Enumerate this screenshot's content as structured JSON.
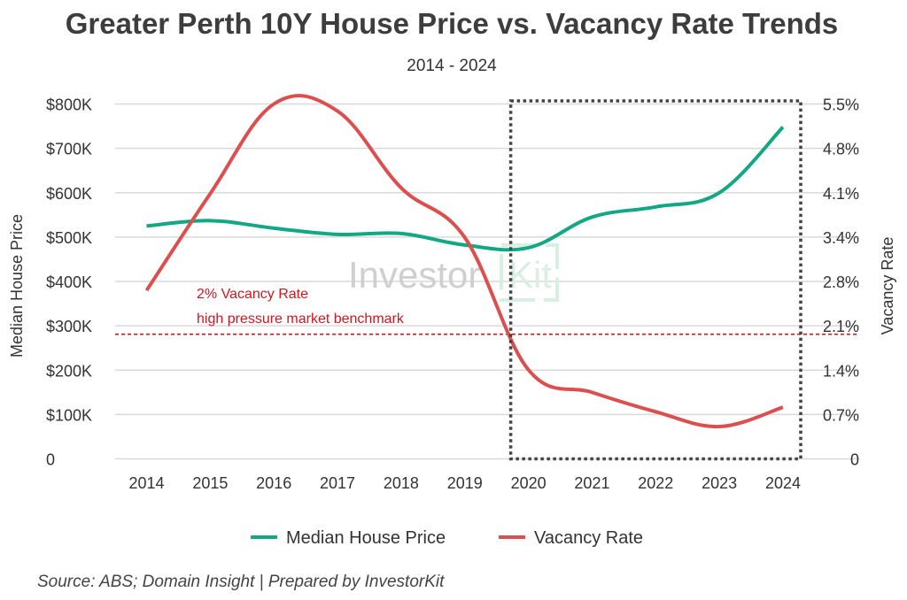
{
  "chart_data": {
    "type": "line",
    "title": "Greater Perth 10Y House Price vs. Vacancy Rate Trends",
    "subtitle": "2014 - 2024",
    "x": [
      "2014",
      "2015",
      "2016",
      "2017",
      "2018",
      "2019",
      "2020",
      "2021",
      "2022",
      "2023",
      "2024"
    ],
    "ylabel_left": "Median House Price",
    "ylabel_right": "Vacancy Rate",
    "y_left": {
      "range": [
        0,
        800000
      ],
      "ticks": [
        "0",
        "$100K",
        "$200K",
        "$300K",
        "$400K",
        "$500K",
        "$600K",
        "$700K",
        "$800K"
      ]
    },
    "y_right": {
      "range": [
        0,
        5.5
      ],
      "ticks": [
        "0",
        "0.7%",
        "1.4%",
        "2.1%",
        "2.8%",
        "3.4%",
        "4.1%",
        "4.8%",
        "5.5%"
      ]
    },
    "series": [
      {
        "name": "Median House Price",
        "axis": "left",
        "color": "#13a884",
        "values": [
          525000,
          537000,
          520000,
          506000,
          508000,
          482000,
          476000,
          545000,
          568000,
          600000,
          748000
        ]
      },
      {
        "name": "Vacancy Rate",
        "axis": "right",
        "color": "#dc4f4f",
        "values": [
          2.61,
          4.11,
          5.5,
          5.39,
          4.2,
          3.43,
          1.38,
          1.03,
          0.73,
          0.5,
          0.8
        ]
      }
    ],
    "benchmark": {
      "value": 2,
      "axis": "right",
      "color": "#d0161e",
      "label_line1": "2% Vacancy Rate",
      "label_line2": "high pressure market benchmark"
    },
    "highlight_range": [
      "2020",
      "2024"
    ],
    "grid": true,
    "legend_position": "bottom",
    "source": "Source: ABS; Domain Insight | Prepared by InvestorKit",
    "watermark": "InvestorKit"
  }
}
